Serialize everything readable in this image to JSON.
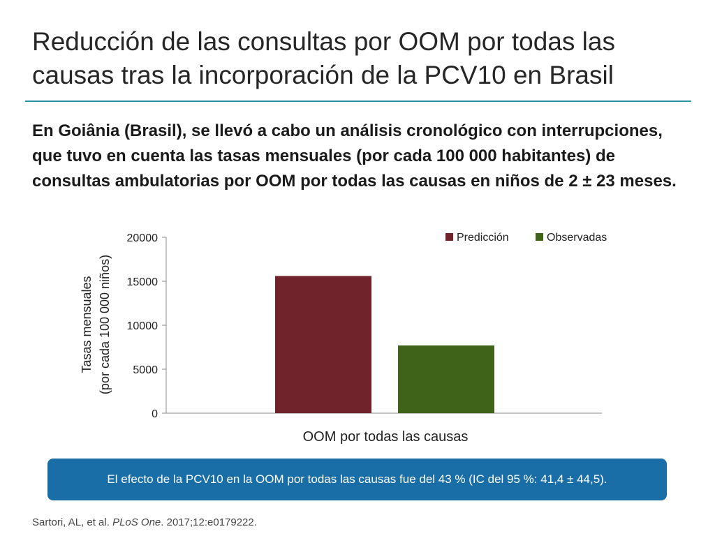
{
  "slide": {
    "title": "Reducción de las consultas por OOM por todas las causas tras la incorporación de la PCV10 en Brasil",
    "intro": "En Goiânia (Brasil), se llevó a cabo un análisis cronológico con interrupciones, que tuvo en cuenta las tasas mensuales (por cada 100 000 habitantes) de consultas ambulatorias por OOM por todas las causas en niños de 2 ± 23 meses.",
    "callout": "El efecto de la PCV10 en la OOM por todas las causas fue del 43 % (IC del 95 %: 41,4 ± 44,5).",
    "citation": {
      "authors": "Sartori, AL, et al. ",
      "journal": "PLoS One",
      "details": ". 2017;12:e0179222."
    }
  },
  "chart_data": {
    "type": "bar",
    "categories": [
      "OOM por todas las causas"
    ],
    "series": [
      {
        "name": "Predicción",
        "values": [
          15600
        ],
        "color": "#70232a"
      },
      {
        "name": "Observadas",
        "values": [
          7700
        ],
        "color": "#3e6319"
      }
    ],
    "xlabel": "OOM por todas las causas",
    "ylabel": "Tasas mensuales",
    "ylabel2": "(por cada 100 000 niños)",
    "ylim": [
      0,
      20000
    ],
    "yticks": [
      "0",
      "5000",
      "10000",
      "15000",
      "20000"
    ],
    "grid": false,
    "legend": "top-right"
  }
}
